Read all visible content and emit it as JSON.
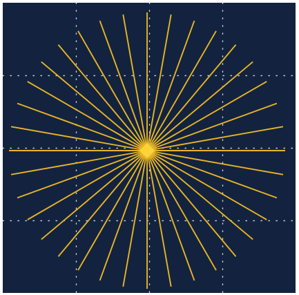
{
  "canvas": {
    "background_color": "#13233f"
  },
  "grid": {
    "style": "dotted",
    "color": "#c9ced6",
    "columns": 4,
    "rows": 4
  },
  "starburst": {
    "ray_count": 36,
    "color": "#e8b524",
    "center_marker": "diamond",
    "center_color": "#ffd23a"
  }
}
